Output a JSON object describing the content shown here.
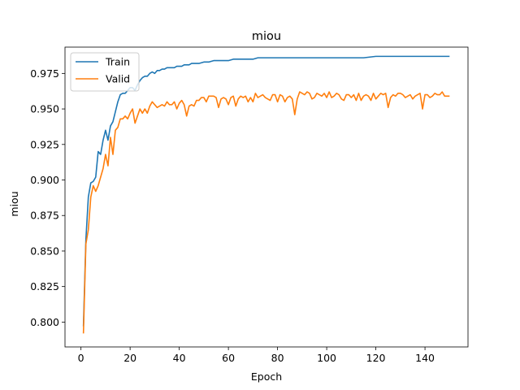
{
  "chart_data": {
    "type": "line",
    "title": "miou",
    "xlabel": "Epoch",
    "ylabel": "miou",
    "xlim": [
      -6.5,
      157.5
    ],
    "ylim": [
      0.7825,
      0.9935
    ],
    "xticks": [
      0,
      20,
      40,
      60,
      80,
      100,
      120,
      140
    ],
    "yticks": [
      0.8,
      0.825,
      0.85,
      0.875,
      0.9,
      0.925,
      0.95,
      0.975
    ],
    "ytick_labels": [
      "0.800",
      "0.825",
      "0.850",
      "0.875",
      "0.900",
      "0.925",
      "0.950",
      "0.975"
    ],
    "grid": false,
    "legend_position": "top-left",
    "series": [
      {
        "name": "Train",
        "color": "#1f77b4",
        "points": [
          [
            1,
            0.797
          ],
          [
            2,
            0.858
          ],
          [
            3,
            0.888
          ],
          [
            4,
            0.898
          ],
          [
            5,
            0.899
          ],
          [
            6,
            0.902
          ],
          [
            7,
            0.92
          ],
          [
            8,
            0.918
          ],
          [
            9,
            0.928
          ],
          [
            10,
            0.935
          ],
          [
            11,
            0.928
          ],
          [
            12,
            0.938
          ],
          [
            13,
            0.941
          ],
          [
            14,
            0.948
          ],
          [
            15,
            0.955
          ],
          [
            16,
            0.96
          ],
          [
            17,
            0.961
          ],
          [
            18,
            0.961
          ],
          [
            19,
            0.963
          ],
          [
            20,
            0.965
          ],
          [
            21,
            0.965
          ],
          [
            22,
            0.963
          ],
          [
            23,
            0.967
          ],
          [
            24,
            0.97
          ],
          [
            25,
            0.972
          ],
          [
            26,
            0.973
          ],
          [
            27,
            0.973
          ],
          [
            28,
            0.975
          ],
          [
            29,
            0.976
          ],
          [
            30,
            0.975
          ],
          [
            31,
            0.977
          ],
          [
            32,
            0.977
          ],
          [
            33,
            0.978
          ],
          [
            34,
            0.978
          ],
          [
            35,
            0.979
          ],
          [
            36,
            0.979
          ],
          [
            37,
            0.979
          ],
          [
            38,
            0.979
          ],
          [
            39,
            0.98
          ],
          [
            40,
            0.98
          ],
          [
            41,
            0.98
          ],
          [
            42,
            0.981
          ],
          [
            43,
            0.981
          ],
          [
            44,
            0.981
          ],
          [
            45,
            0.982
          ],
          [
            46,
            0.982
          ],
          [
            47,
            0.982
          ],
          [
            48,
            0.982
          ],
          [
            50,
            0.983
          ],
          [
            52,
            0.983
          ],
          [
            54,
            0.984
          ],
          [
            56,
            0.984
          ],
          [
            58,
            0.984
          ],
          [
            60,
            0.984
          ],
          [
            62,
            0.985
          ],
          [
            65,
            0.985
          ],
          [
            68,
            0.985
          ],
          [
            70,
            0.985
          ],
          [
            72,
            0.986
          ],
          [
            75,
            0.986
          ],
          [
            80,
            0.986
          ],
          [
            85,
            0.986
          ],
          [
            90,
            0.986
          ],
          [
            95,
            0.986
          ],
          [
            100,
            0.986
          ],
          [
            105,
            0.986
          ],
          [
            110,
            0.986
          ],
          [
            115,
            0.986
          ],
          [
            120,
            0.987
          ],
          [
            125,
            0.987
          ],
          [
            130,
            0.987
          ],
          [
            135,
            0.987
          ],
          [
            140,
            0.987
          ],
          [
            145,
            0.987
          ],
          [
            150,
            0.987
          ]
        ]
      },
      {
        "name": "Valid",
        "color": "#ff7f0e",
        "points": [
          [
            1,
            0.792
          ],
          [
            2,
            0.855
          ],
          [
            3,
            0.865
          ],
          [
            4,
            0.888
          ],
          [
            5,
            0.896
          ],
          [
            6,
            0.892
          ],
          [
            7,
            0.896
          ],
          [
            8,
            0.902
          ],
          [
            9,
            0.908
          ],
          [
            10,
            0.918
          ],
          [
            11,
            0.91
          ],
          [
            12,
            0.93
          ],
          [
            13,
            0.918
          ],
          [
            14,
            0.935
          ],
          [
            15,
            0.937
          ],
          [
            16,
            0.943
          ],
          [
            17,
            0.943
          ],
          [
            18,
            0.945
          ],
          [
            19,
            0.943
          ],
          [
            20,
            0.947
          ],
          [
            21,
            0.95
          ],
          [
            22,
            0.94
          ],
          [
            23,
            0.945
          ],
          [
            24,
            0.95
          ],
          [
            25,
            0.947
          ],
          [
            26,
            0.95
          ],
          [
            27,
            0.947
          ],
          [
            28,
            0.952
          ],
          [
            29,
            0.955
          ],
          [
            30,
            0.953
          ],
          [
            31,
            0.951
          ],
          [
            32,
            0.952
          ],
          [
            33,
            0.953
          ],
          [
            34,
            0.952
          ],
          [
            35,
            0.955
          ],
          [
            36,
            0.953
          ],
          [
            37,
            0.953
          ],
          [
            38,
            0.955
          ],
          [
            39,
            0.95
          ],
          [
            40,
            0.954
          ],
          [
            41,
            0.956
          ],
          [
            42,
            0.953
          ],
          [
            43,
            0.945
          ],
          [
            44,
            0.952
          ],
          [
            45,
            0.953
          ],
          [
            46,
            0.952
          ],
          [
            47,
            0.956
          ],
          [
            48,
            0.956
          ],
          [
            49,
            0.958
          ],
          [
            50,
            0.958
          ],
          [
            51,
            0.955
          ],
          [
            52,
            0.959
          ],
          [
            53,
            0.959
          ],
          [
            54,
            0.959
          ],
          [
            55,
            0.958
          ],
          [
            56,
            0.951
          ],
          [
            57,
            0.957
          ],
          [
            58,
            0.958
          ],
          [
            59,
            0.957
          ],
          [
            60,
            0.953
          ],
          [
            61,
            0.958
          ],
          [
            62,
            0.959
          ],
          [
            63,
            0.952
          ],
          [
            64,
            0.957
          ],
          [
            65,
            0.959
          ],
          [
            66,
            0.958
          ],
          [
            67,
            0.959
          ],
          [
            68,
            0.955
          ],
          [
            69,
            0.958
          ],
          [
            70,
            0.955
          ],
          [
            71,
            0.961
          ],
          [
            72,
            0.958
          ],
          [
            73,
            0.959
          ],
          [
            74,
            0.96
          ],
          [
            75,
            0.958
          ],
          [
            76,
            0.957
          ],
          [
            77,
            0.956
          ],
          [
            78,
            0.96
          ],
          [
            79,
            0.96
          ],
          [
            80,
            0.955
          ],
          [
            81,
            0.96
          ],
          [
            82,
            0.959
          ],
          [
            83,
            0.955
          ],
          [
            84,
            0.958
          ],
          [
            85,
            0.959
          ],
          [
            86,
            0.957
          ],
          [
            87,
            0.946
          ],
          [
            88,
            0.957
          ],
          [
            89,
            0.962
          ],
          [
            90,
            0.961
          ],
          [
            91,
            0.96
          ],
          [
            92,
            0.962
          ],
          [
            93,
            0.961
          ],
          [
            94,
            0.957
          ],
          [
            95,
            0.958
          ],
          [
            96,
            0.961
          ],
          [
            97,
            0.96
          ],
          [
            98,
            0.959
          ],
          [
            99,
            0.961
          ],
          [
            100,
            0.958
          ],
          [
            101,
            0.962
          ],
          [
            102,
            0.958
          ],
          [
            103,
            0.959
          ],
          [
            104,
            0.961
          ],
          [
            105,
            0.96
          ],
          [
            106,
            0.957
          ],
          [
            107,
            0.956
          ],
          [
            108,
            0.96
          ],
          [
            109,
            0.96
          ],
          [
            110,
            0.958
          ],
          [
            111,
            0.96
          ],
          [
            112,
            0.956
          ],
          [
            113,
            0.961
          ],
          [
            114,
            0.956
          ],
          [
            115,
            0.959
          ],
          [
            116,
            0.96
          ],
          [
            117,
            0.959
          ],
          [
            118,
            0.956
          ],
          [
            119,
            0.961
          ],
          [
            120,
            0.957
          ],
          [
            121,
            0.959
          ],
          [
            122,
            0.961
          ],
          [
            123,
            0.96
          ],
          [
            124,
            0.961
          ],
          [
            125,
            0.951
          ],
          [
            126,
            0.958
          ],
          [
            127,
            0.96
          ],
          [
            128,
            0.959
          ],
          [
            129,
            0.961
          ],
          [
            130,
            0.961
          ],
          [
            131,
            0.96
          ],
          [
            132,
            0.958
          ],
          [
            133,
            0.959
          ],
          [
            134,
            0.96
          ],
          [
            135,
            0.957
          ],
          [
            136,
            0.959
          ],
          [
            137,
            0.96
          ],
          [
            138,
            0.961
          ],
          [
            139,
            0.95
          ],
          [
            140,
            0.96
          ],
          [
            141,
            0.96
          ],
          [
            142,
            0.958
          ],
          [
            143,
            0.959
          ],
          [
            144,
            0.961
          ],
          [
            145,
            0.96
          ],
          [
            146,
            0.96
          ],
          [
            147,
            0.962
          ],
          [
            148,
            0.959
          ],
          [
            149,
            0.959
          ],
          [
            150,
            0.959
          ]
        ]
      }
    ]
  }
}
